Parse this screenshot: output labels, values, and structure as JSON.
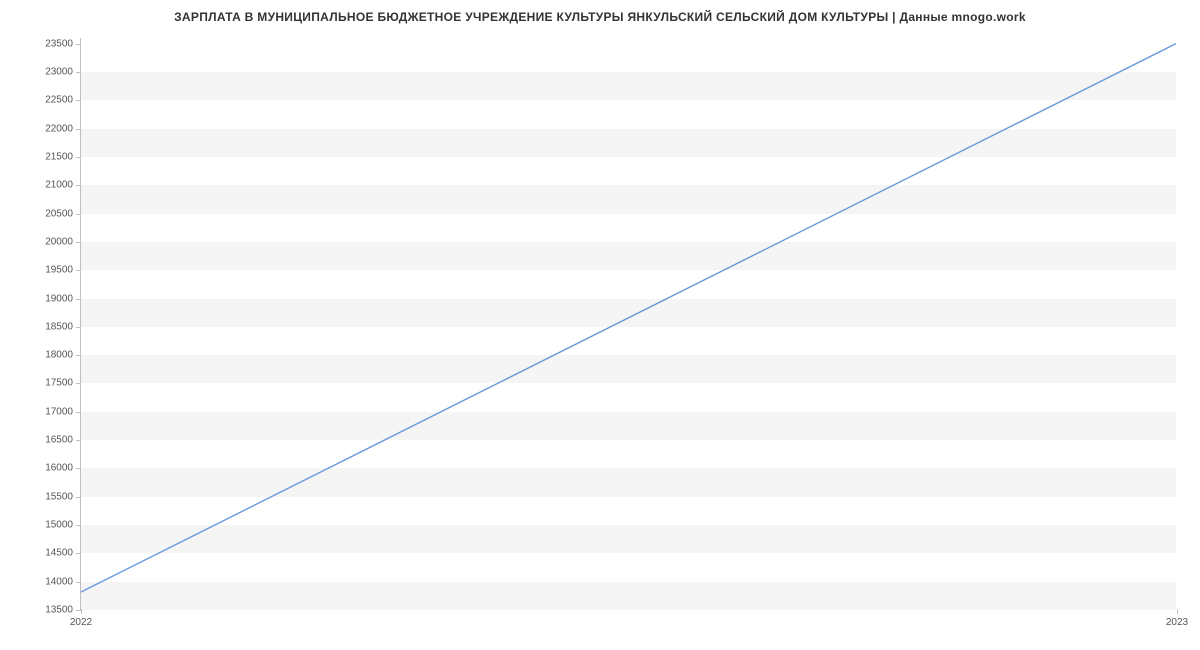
{
  "chart": {
    "type": "line",
    "title": "ЗАРПЛАТА В МУНИЦИПАЛЬНОЕ БЮДЖЕТНОЕ УЧРЕЖДЕНИЕ КУЛЬТУРЫ ЯНКУЛЬСКИЙ СЕЛЬСКИЙ ДОМ КУЛЬТУРЫ | Данные mnogo.work",
    "title_fontsize": 12,
    "title_color": "#333333",
    "background_color": "#ffffff",
    "band_color": "#f5f5f5",
    "axis_color": "#c0c0c0",
    "tick_label_color": "#555555",
    "tick_label_fontsize": 10,
    "line_color": "#6699dd",
    "line_width": 1.4,
    "x": {
      "min": 2022,
      "max": 2023,
      "ticks": [
        2022,
        2023
      ],
      "tick_labels": [
        "2022",
        "2023"
      ]
    },
    "y": {
      "min": 13500,
      "max": 23600,
      "ticks": [
        13500,
        14000,
        14500,
        15000,
        15500,
        16000,
        16500,
        17000,
        17500,
        18000,
        18500,
        19000,
        19500,
        20000,
        20500,
        21000,
        21500,
        22000,
        22500,
        23000,
        23500
      ],
      "tick_labels": [
        "13500",
        "14000",
        "14500",
        "15000",
        "15500",
        "16000",
        "16500",
        "17000",
        "17500",
        "18000",
        "18500",
        "19000",
        "19500",
        "20000",
        "20500",
        "21000",
        "21500",
        "22000",
        "22500",
        "23000",
        "23500"
      ]
    },
    "series": [
      {
        "x": 2022,
        "y": 13800
      },
      {
        "x": 2023,
        "y": 23500
      }
    ]
  }
}
